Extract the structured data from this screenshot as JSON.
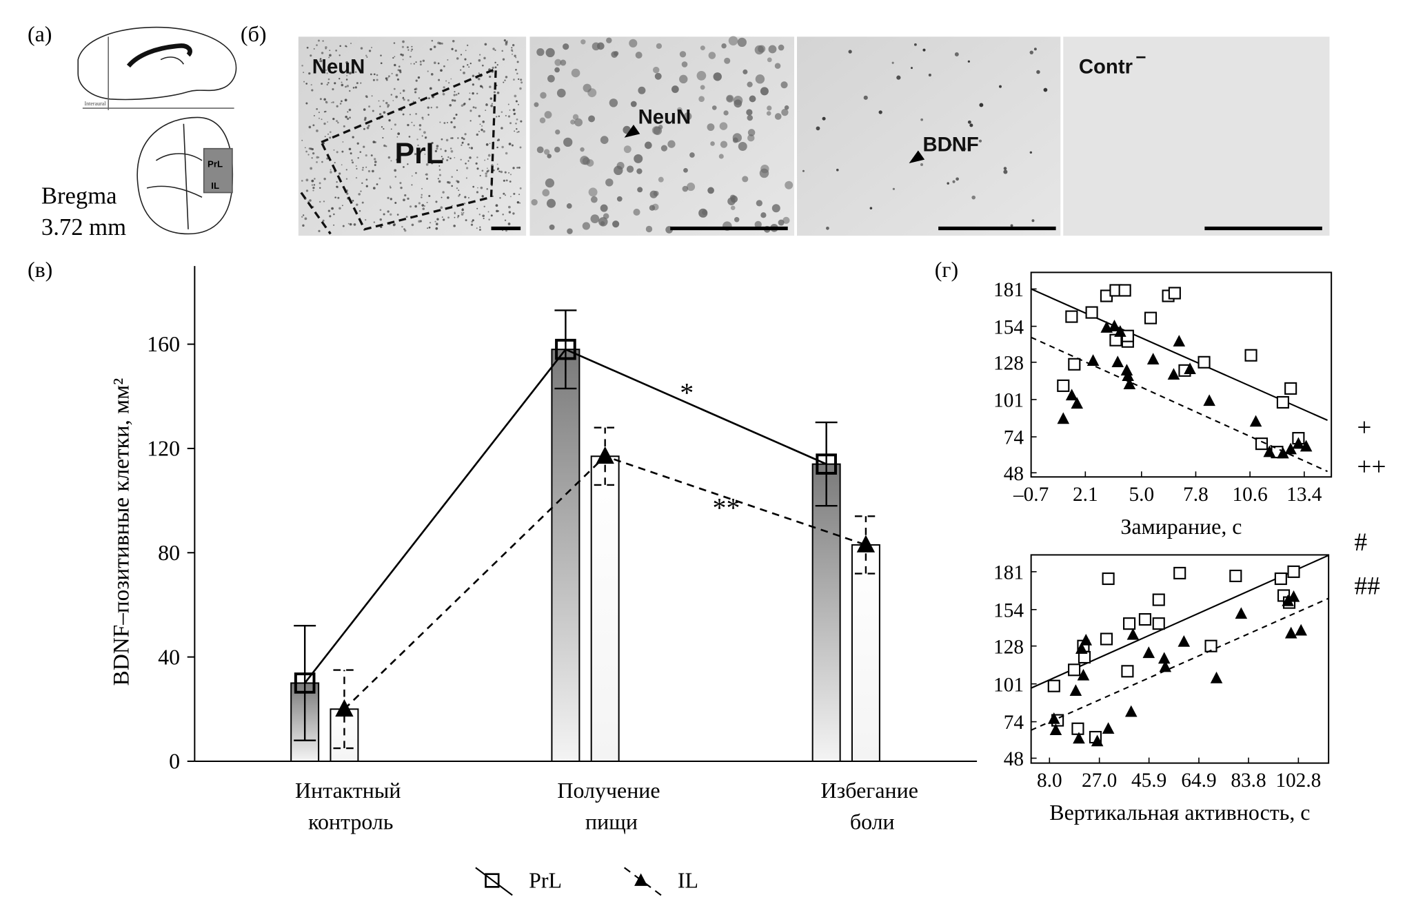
{
  "panel_labels": [
    "(а)",
    "(б)",
    "(в)",
    "(г)"
  ],
  "brain_schema": {
    "regions": [
      "PrL",
      "IL"
    ],
    "interaural": "Interaural",
    "bregma": "Bregma",
    "coordinate": "3.72 mm"
  },
  "micrographs": [
    {
      "label": "NeuN",
      "region": "PrL"
    },
    {
      "label": "NeuN"
    },
    {
      "label": "BDNF"
    },
    {
      "label": "Contr",
      "superscript": "–"
    }
  ],
  "chart_data": [
    {
      "type": "bar",
      "y_label": "BDNF–позитивные клетки, мм²",
      "categories": [
        "Интактный контроль",
        "Получение пищи",
        "Избегание боли"
      ],
      "series": [
        {
          "name": "PrL",
          "color": "#7a7a7a",
          "marker": "square",
          "line_style": "solid",
          "values": [
            30,
            158,
            114
          ],
          "errors": [
            22,
            15,
            16
          ]
        },
        {
          "name": "IL",
          "color": "#ffffff",
          "marker": "triangle",
          "line_style": "dashed",
          "values": [
            20,
            117,
            83
          ],
          "errors": [
            15,
            11,
            11
          ]
        }
      ],
      "ylim": [
        0,
        190
      ],
      "yticks": [
        0,
        40,
        80,
        120,
        160
      ],
      "annotations": [
        "*",
        "**"
      ],
      "legend": "bottom"
    },
    {
      "type": "scatter",
      "x_label": "Замирание, с",
      "xlim": [
        -0.7,
        14.8
      ],
      "xticks": [
        {
          "value": -0.7,
          "label": "–0.7"
        },
        2.1,
        {
          "value": 5,
          "label": "5.0"
        },
        7.8,
        10.6,
        13.4
      ],
      "ylim": [
        45,
        193
      ],
      "yticks": [
        48,
        74,
        101,
        128,
        154,
        181
      ],
      "series": [
        {
          "marker": "square",
          "line_style": "solid",
          "x": [
            1.39,
            1.53,
            0.96,
            2.43,
            3.19,
            3.67,
            4.14,
            3.67,
            4.29,
            4.29,
            5.47,
            6.38,
            6.71,
            7.23,
            8.23,
            10.65,
            11.2,
            12.0,
            12.3,
            12.7,
            13.1
          ],
          "y": [
            161,
            126.5,
            111,
            164,
            176,
            180,
            180,
            144,
            143,
            147,
            160,
            176,
            178,
            122,
            128,
            133,
            69,
            63,
            99,
            109,
            73
          ],
          "trend": {
            "x": [
              -0.7,
              14.6
            ],
            "y": [
              181,
              86
            ]
          }
        },
        {
          "marker": "triangle",
          "line_style": "dashed",
          "x": [
            0.96,
            1.4,
            1.67,
            2.5,
            3.2,
            3.6,
            3.9,
            3.77,
            4.24,
            4.38,
            4.3,
            5.6,
            6.66,
            6.94,
            7.5,
            8.5,
            10.9,
            11.6,
            12.3,
            12.7,
            13.1,
            13.5
          ],
          "y": [
            87,
            104,
            98,
            129,
            153,
            154,
            150,
            128,
            122,
            112,
            118,
            130,
            119,
            143,
            123,
            100,
            85,
            63,
            62,
            65,
            69,
            67
          ],
          "trend": {
            "x": [
              -0.7,
              14.6
            ],
            "y": [
              146,
              49
            ]
          }
        }
      ],
      "annotations": [
        "+",
        "++"
      ]
    },
    {
      "type": "scatter",
      "x_label": "Вертикальная активность, с",
      "xlim": [
        1,
        114.3
      ],
      "xticks": [
        {
          "value": 8,
          "label": "8.0"
        },
        {
          "value": 27,
          "label": "27.0"
        },
        45.9,
        64.9,
        83.8,
        102.8
      ],
      "ylim": [
        44.5,
        193
      ],
      "yticks": [
        48,
        74,
        101,
        128,
        154,
        181
      ],
      "series": [
        {
          "marker": "square",
          "line_style": "solid",
          "x": [
            9.7,
            11.1,
            18.8,
            20.9,
            21.3,
            17.4,
            25.5,
            30.4,
            29.7,
            37.7,
            38.4,
            44.4,
            49.6,
            49.6,
            57.6,
            69.5,
            78.9,
            96.1,
            97.2,
            101,
            99.3
          ],
          "y": [
            99.5,
            75,
            69,
            128,
            120,
            111,
            63,
            176,
            133,
            110,
            144,
            147,
            161,
            144,
            180,
            128,
            178,
            176,
            164,
            181,
            159
          ],
          "trend": {
            "x": [
              1,
              114.3
            ],
            "y": [
              98,
              192.7
            ]
          }
        },
        {
          "marker": "triangle",
          "line_style": "dashed",
          "x": [
            9.7,
            10.4,
            18,
            20.9,
            21.9,
            20.2,
            19.2,
            26.2,
            30.4,
            39.1,
            39.8,
            45.8,
            51.7,
            52.1,
            59.2,
            71.6,
            81,
            98.8,
            101,
            100,
            103.8
          ],
          "y": [
            76,
            68,
            96,
            107,
            132,
            126,
            62,
            60,
            69,
            81,
            136,
            123,
            119,
            113,
            131,
            105,
            151,
            160,
            163,
            137,
            139
          ],
          "trend": {
            "x": [
              1,
              114.3
            ],
            "y": [
              68,
              162
            ]
          }
        }
      ],
      "annotations": [
        "#",
        "##"
      ]
    }
  ]
}
